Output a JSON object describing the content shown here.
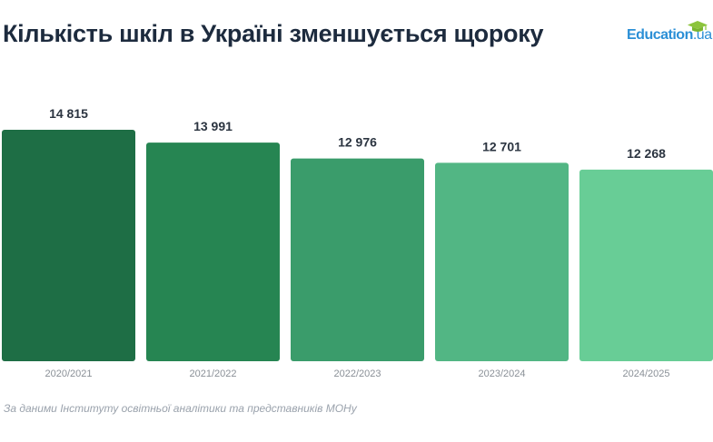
{
  "title": "Кількість шкіл в Україні зменшується щороку",
  "logo": {
    "name": "Education",
    "suffix": ".ua",
    "icon": "graduation-cap-icon",
    "color": "#2b8fd6"
  },
  "source": "За даними Інституту освітньої аналітики та представників МОНу",
  "colors": {
    "title": "#1d2b3e",
    "value_label": "#2b3440",
    "tick_label": "#8a9097",
    "bars": [
      "#1e6e45",
      "#268552",
      "#3a9c6b",
      "#52b684",
      "#68cd96"
    ]
  },
  "chart_data": {
    "type": "bar",
    "categories": [
      "2020/2021",
      "2021/2022",
      "2022/2023",
      "2023/2024",
      "2024/2025"
    ],
    "values": [
      14815,
      13991,
      12976,
      12701,
      12268
    ],
    "value_labels": [
      "14 815",
      "13 991",
      "12 976",
      "12 701",
      "12 268"
    ],
    "xlabel": "",
    "ylabel": "",
    "ylim": [
      0,
      14815
    ],
    "grid": false,
    "legend": "none"
  }
}
